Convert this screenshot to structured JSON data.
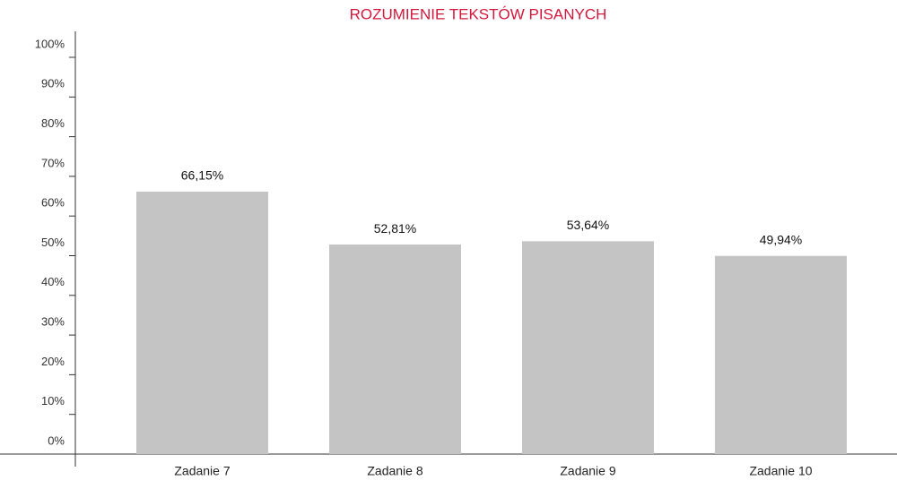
{
  "chart_data": {
    "type": "bar",
    "title": "ROZUMIENIE TEKSTÓW PISANYCH",
    "categories": [
      "Zadanie 7",
      "Zadanie 8",
      "Zadanie 9",
      "Zadanie 10"
    ],
    "values": [
      66.15,
      52.81,
      53.64,
      49.94
    ],
    "value_labels": [
      "66,15%",
      "52,81%",
      "53,64%",
      "49,94%"
    ],
    "color": "#c4c4c4",
    "ylim": [
      0,
      100
    ],
    "yticks": [
      {
        "value": 0,
        "label": "0%"
      },
      {
        "value": 10,
        "label": "10%"
      },
      {
        "value": 20,
        "label": "20%"
      },
      {
        "value": 30,
        "label": "30%"
      },
      {
        "value": 40,
        "label": "40%"
      },
      {
        "value": 50,
        "label": "50%"
      },
      {
        "value": 60,
        "label": "60%"
      },
      {
        "value": 70,
        "label": "70%"
      },
      {
        "value": 80,
        "label": "80%"
      },
      {
        "value": 90,
        "label": "90%"
      },
      {
        "value": 100,
        "label": "100%"
      }
    ],
    "grid": false
  }
}
